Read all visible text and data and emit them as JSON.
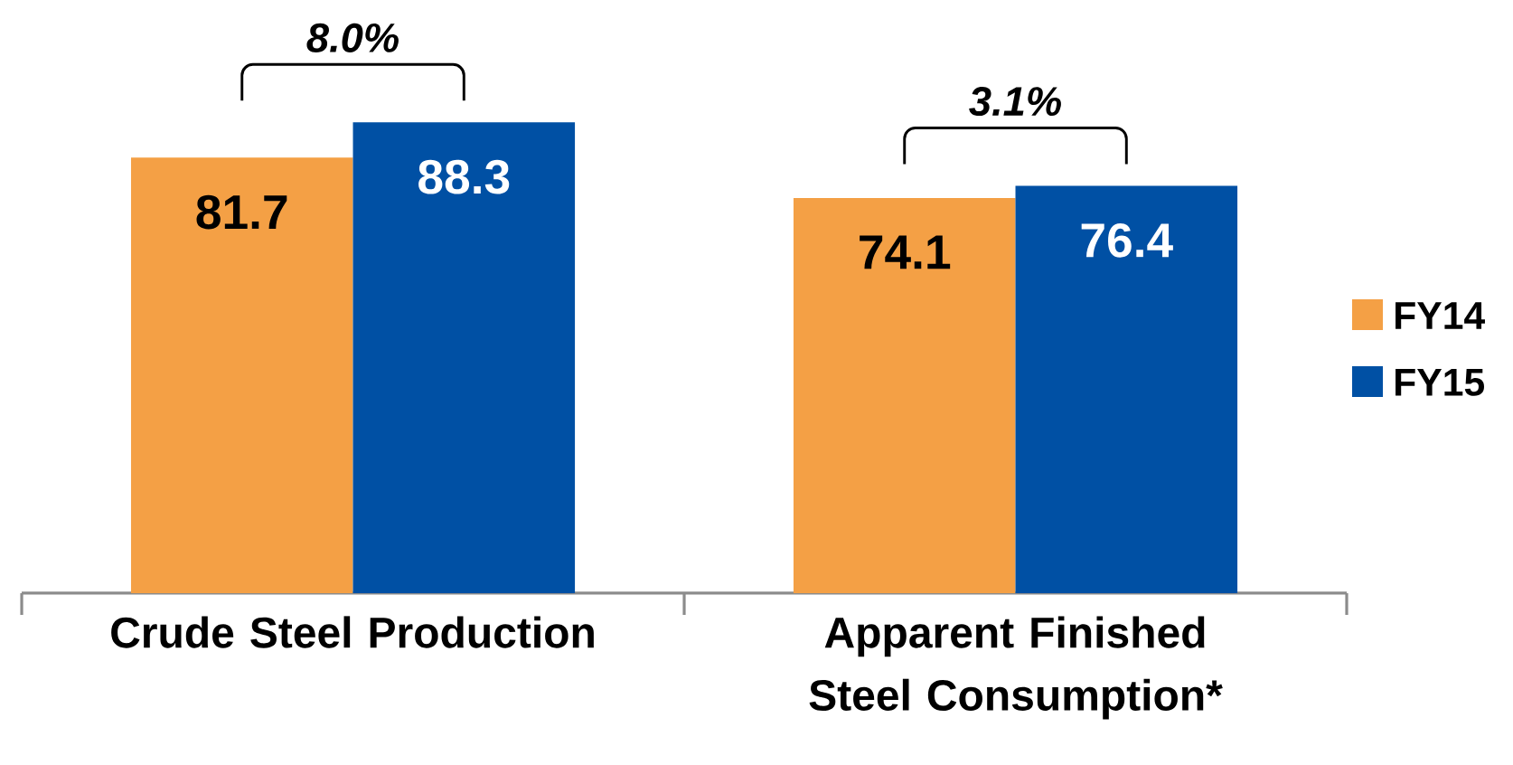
{
  "chart_data": {
    "type": "bar",
    "categories": [
      "Crude Steel Production",
      "Apparent Finished Steel Consumption*"
    ],
    "series": [
      {
        "name": "FY14",
        "color": "#F4A045",
        "values": [
          81.7,
          74.1
        ]
      },
      {
        "name": "FY15",
        "color": "#0050A4",
        "values": [
          88.3,
          76.4
        ]
      }
    ],
    "data_labels": true,
    "annotations": [
      "8.0%",
      "3.1%"
    ],
    "legend": "right"
  }
}
